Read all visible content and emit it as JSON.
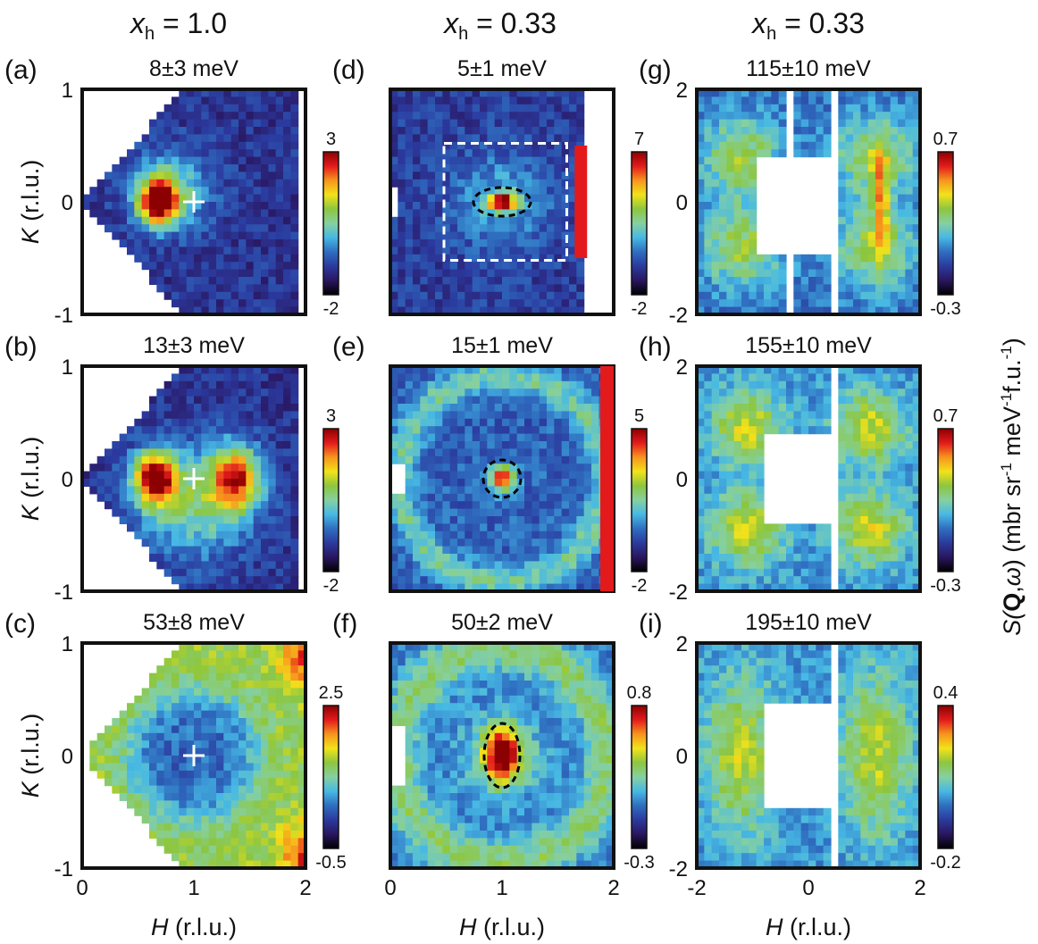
{
  "figure": {
    "columns": [
      {
        "label": "x",
        "sub": "h",
        "value": "1.0"
      },
      {
        "label": "x",
        "sub": "h",
        "value": "0.33"
      },
      {
        "label": "x",
        "sub": "h",
        "value": "0.33"
      }
    ],
    "side_label": {
      "prefix": "S(",
      "bold": "Q",
      "mid": ",",
      "omega": "ω",
      "units": ") (mbr sr",
      "u1": "-1",
      "u2": "meV",
      "u3": "-1",
      "u4": "f.u.",
      "u5": "-1",
      "close": ")"
    },
    "colors": {
      "colormap": [
        "#000000",
        "#2a1660",
        "#2b3a9e",
        "#2f6ec0",
        "#47b9e4",
        "#86d0a0",
        "#8cc63f",
        "#f2e21a",
        "#f7941d",
        "#e31a1c",
        "#8b0000"
      ],
      "white_marker": "#ffffff",
      "dashed_white": "#ffffff",
      "dashed_black": "#000000"
    }
  },
  "chart_data": [
    {
      "id": "a",
      "type": "heatmap",
      "letter": "(a)",
      "energy": "8±3 meV",
      "x_variable": "H",
      "y_variable": "K",
      "unit": "(r.l.u.)",
      "xlim": [
        0,
        2
      ],
      "ylim": [
        -1,
        1
      ],
      "xticks": [
        "0",
        "1",
        "2"
      ],
      "yticks": [
        "1",
        "0",
        "-1"
      ],
      "colorbar": {
        "max": "3",
        "min": "-2"
      },
      "features": [
        "bright spot near (0.7,0) with cross marker at (1,0)"
      ]
    },
    {
      "id": "b",
      "type": "heatmap",
      "letter": "(b)",
      "energy": "13±3 meV",
      "x_variable": "H",
      "y_variable": "K",
      "unit": "(r.l.u.)",
      "xlim": [
        0,
        2
      ],
      "ylim": [
        -1,
        1
      ],
      "xticks": [
        "0",
        "1",
        "2"
      ],
      "yticks": [
        "1",
        "0",
        "-1"
      ],
      "colorbar": {
        "max": "3",
        "min": "-2"
      },
      "features": [
        "spots at (0.65,0) and (1.4,0), cross at (1,0)"
      ]
    },
    {
      "id": "c",
      "type": "heatmap",
      "letter": "(c)",
      "energy": "53±8 meV",
      "x_variable": "H",
      "y_variable": "K",
      "unit": "(r.l.u.)",
      "xlim": [
        0,
        2
      ],
      "ylim": [
        -1,
        1
      ],
      "xticks": [
        "0",
        "1",
        "2"
      ],
      "yticks": [
        "1",
        "0",
        "-1"
      ],
      "colorbar": {
        "max": "2.5",
        "min": "-0.5"
      },
      "features": [
        "broad green region on right, cross at (1,0)"
      ]
    },
    {
      "id": "d",
      "type": "heatmap",
      "letter": "(d)",
      "energy": "5±1 meV",
      "x_variable": "H",
      "y_variable": "K",
      "unit": "(r.l.u.)",
      "xlim": [
        0,
        2
      ],
      "ylim": [
        -1,
        1
      ],
      "xticks": [
        "0",
        "1",
        "2"
      ],
      "colorbar": {
        "max": "7",
        "min": "-2"
      },
      "features": [
        "dashed ellipse at (1,0), dashed square box"
      ]
    },
    {
      "id": "e",
      "type": "heatmap",
      "letter": "(e)",
      "energy": "15±1 meV",
      "x_variable": "H",
      "y_variable": "K",
      "unit": "(r.l.u.)",
      "xlim": [
        0,
        2
      ],
      "ylim": [
        -1,
        1
      ],
      "xticks": [
        "0",
        "1",
        "2"
      ],
      "colorbar": {
        "max": "5",
        "min": "-2"
      },
      "features": [
        "ring of intensity, dashed circle at (1,0)"
      ]
    },
    {
      "id": "f",
      "type": "heatmap",
      "letter": "(f)",
      "energy": "50±2 meV",
      "x_variable": "H",
      "y_variable": "K",
      "unit": "(r.l.u.)",
      "xlim": [
        0,
        2
      ],
      "ylim": [
        -1,
        1
      ],
      "xticks": [
        "0",
        "1",
        "2"
      ],
      "colorbar": {
        "max": "0.8",
        "min": "-0.3"
      },
      "features": [
        "strong spot at (1,0) inside dashed ellipse"
      ]
    },
    {
      "id": "g",
      "type": "heatmap",
      "letter": "(g)",
      "energy": "115±10 meV",
      "x_variable": "H",
      "y_variable": "K",
      "unit": "(r.l.u.)",
      "xlim": [
        -2,
        2
      ],
      "ylim": [
        -2,
        2
      ],
      "xticks": [
        "-2",
        "0",
        "2"
      ],
      "yticks": [
        "2",
        "0",
        "-2"
      ],
      "colorbar": {
        "max": "0.7",
        "min": "-0.3"
      },
      "features": [
        "white mask region near centre"
      ]
    },
    {
      "id": "h",
      "type": "heatmap",
      "letter": "(h)",
      "energy": "155±10 meV",
      "x_variable": "H",
      "y_variable": "K",
      "unit": "(r.l.u.)",
      "xlim": [
        -2,
        2
      ],
      "ylim": [
        -2,
        2
      ],
      "xticks": [
        "-2",
        "0",
        "2"
      ],
      "yticks": [
        "2",
        "0",
        "-2"
      ],
      "colorbar": {
        "max": "0.7",
        "min": "-0.3"
      },
      "features": [
        "four green lobes"
      ]
    },
    {
      "id": "i",
      "type": "heatmap",
      "letter": "(i)",
      "energy": "195±10 meV",
      "x_variable": "H",
      "y_variable": "K",
      "unit": "(r.l.u.)",
      "xlim": [
        -2,
        2
      ],
      "ylim": [
        -2,
        2
      ],
      "xticks": [
        "-2",
        "0",
        "2"
      ],
      "yticks": [
        "2",
        "0",
        "-2"
      ],
      "colorbar": {
        "max": "0.4",
        "min": "-0.2"
      },
      "features": [
        "green lobes left and right"
      ]
    }
  ]
}
